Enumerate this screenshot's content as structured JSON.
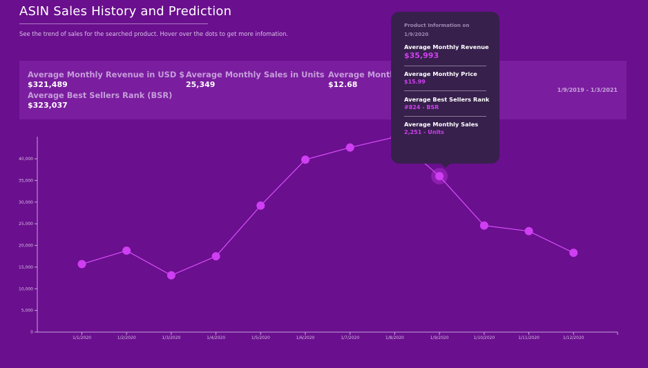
{
  "header": {
    "title": "ASIN Sales History and Prediction",
    "subtitle": "See the trend of sales for the searched product. Hover over the dots to get more infomation."
  },
  "summary": {
    "revenue_label": "Average Monthly Revenue in USD $",
    "revenue_value": "$321,489",
    "units_label": "Average Monthly Sales in Units",
    "units_value": "25,349",
    "price_label": "Average Monthly",
    "price_value": "$12.68",
    "bsr_label": "Average Best Sellers Rank (BSR)",
    "bsr_value": "$323,037",
    "date_range": "1/9/2019 - 1/3/2021"
  },
  "tooltip": {
    "header_line1": "Product Information on",
    "header_line2": "1/9/2020",
    "revenue_label": "Average Monthly Revenue",
    "revenue_value": "$35,993",
    "price_label": "Average Monthly Price",
    "price_value": "$15.99",
    "bsr_label": "Average Best Sellers Rank",
    "bsr_value": "#824 - BSR",
    "sales_label": "Average Monthly Sales",
    "sales_value": "2,251 - Units"
  },
  "colors": {
    "background": "#6a0f8e",
    "line": "#d24cf5",
    "point": "#cf3ef2",
    "tooltip_bg": "#37204c",
    "axis": "#c8a6da"
  },
  "chart_data": {
    "type": "line",
    "title": "",
    "xlabel": "",
    "ylabel": "",
    "categories": [
      "1/1/2020",
      "1/2/2020",
      "1/3/2020",
      "1/4/2020",
      "1/5/2020",
      "1/6/2020",
      "1/7/2020",
      "1/8/2020",
      "1/9/2020",
      "1/10/2020",
      "1/11/2020",
      "1/12/2020"
    ],
    "series": [
      {
        "name": "Average Monthly Revenue",
        "values": [
          15700,
          18800,
          13100,
          17500,
          29200,
          39800,
          42600,
          45000,
          35993,
          24600,
          23300,
          18300
        ]
      }
    ],
    "ylim": [
      0,
      45000
    ],
    "yticks": [
      0,
      5000,
      10000,
      15000,
      20000,
      25000,
      30000,
      35000,
      40000
    ],
    "ytick_labels": [
      "0",
      "5,000",
      "10,000",
      "15,000",
      "20,000",
      "25,000",
      "30,000",
      "35,000",
      "40,000"
    ],
    "highlighted_index": 8
  }
}
